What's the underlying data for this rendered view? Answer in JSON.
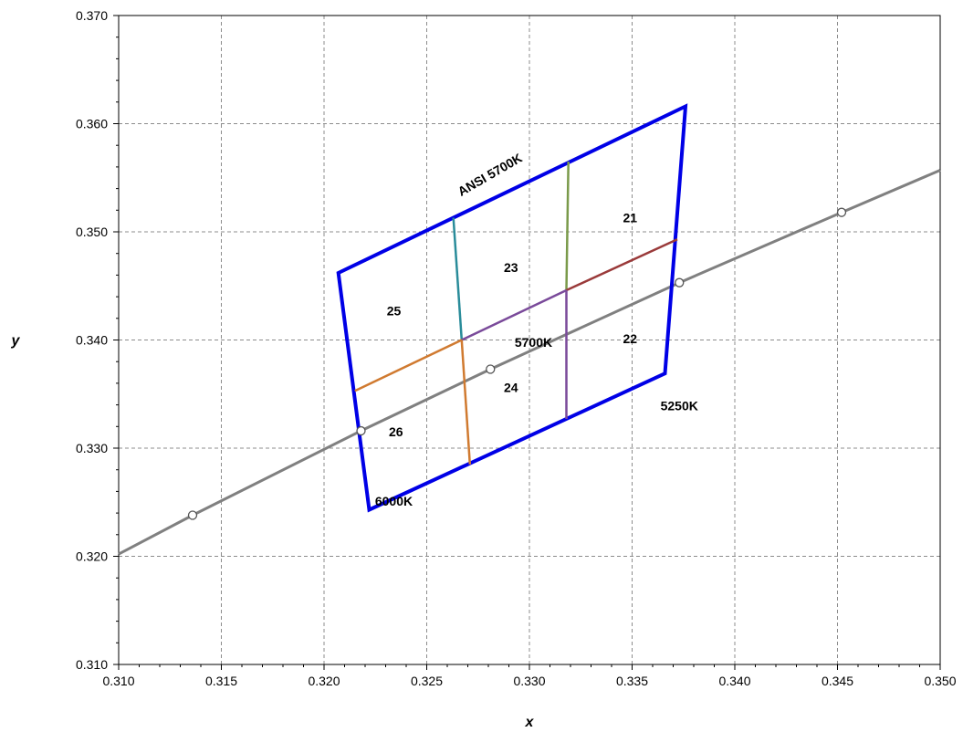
{
  "chart_data": {
    "type": "scatter",
    "title": "",
    "xlabel": "x",
    "ylabel": "y",
    "xlim": [
      0.31,
      0.35
    ],
    "ylim": [
      0.31,
      0.37
    ],
    "x_ticks": [
      "0.310",
      "0.315",
      "0.320",
      "0.325",
      "0.330",
      "0.335",
      "0.340",
      "0.345",
      "0.350"
    ],
    "y_ticks": [
      "0.310",
      "0.320",
      "0.330",
      "0.340",
      "0.350",
      "0.360",
      "0.370"
    ],
    "grid": true,
    "colors": {
      "quadrangle": "#0000e6",
      "locus": "#808080",
      "bin_21": "#7a9a4a",
      "bin_23": "#2a8c9a",
      "bin_upper_mid": "#9a3a3a",
      "bin_center_mid": "#7a4a9a",
      "bin_lower_left": "#d07a30"
    },
    "series": [
      {
        "id": "planckian-locus",
        "type": "line",
        "points": [
          [
            0.31,
            0.3202
          ],
          [
            0.3136,
            0.3238
          ],
          [
            0.3218,
            0.3316
          ],
          [
            0.3281,
            0.3373
          ],
          [
            0.3373,
            0.3453
          ],
          [
            0.3452,
            0.3518
          ],
          [
            0.35,
            0.3557
          ]
        ],
        "markers": [
          [
            0.3136,
            0.3238
          ],
          [
            0.3218,
            0.3316
          ],
          [
            0.3281,
            0.3373
          ],
          [
            0.3373,
            0.3453
          ],
          [
            0.3452,
            0.3518
          ]
        ]
      },
      {
        "id": "ansi-5700k-quadrangle",
        "type": "polygon",
        "points": [
          [
            0.3207,
            0.3462
          ],
          [
            0.3376,
            0.3616
          ],
          [
            0.3366,
            0.3369
          ],
          [
            0.3222,
            0.3243
          ]
        ]
      },
      {
        "id": "subdivisions",
        "type": "segments",
        "segments": [
          {
            "color_key": "bin_21",
            "points": [
              [
                0.3319,
                0.3565
              ],
              [
                0.3318,
                0.3446
              ]
            ]
          },
          {
            "color_key": "bin_23",
            "points": [
              [
                0.3263,
                0.3513
              ],
              [
                0.3267,
                0.34
              ]
            ]
          },
          {
            "color_key": "bin_upper_mid",
            "points": [
              [
                0.3318,
                0.3446
              ],
              [
                0.3372,
                0.3493
              ]
            ]
          },
          {
            "color_key": "bin_center_mid",
            "points": [
              [
                0.3267,
                0.34
              ],
              [
                0.3318,
                0.3446
              ]
            ]
          },
          {
            "color_key": "bin_center_mid",
            "points": [
              [
                0.3318,
                0.3446
              ],
              [
                0.3318,
                0.3327
              ]
            ]
          },
          {
            "color_key": "bin_lower_left",
            "points": [
              [
                0.3215,
                0.3353
              ],
              [
                0.3267,
                0.34
              ]
            ]
          },
          {
            "color_key": "bin_lower_left",
            "points": [
              [
                0.3267,
                0.34
              ],
              [
                0.3271,
                0.3285
              ]
            ]
          }
        ]
      }
    ],
    "annotations": [
      {
        "text": "ANSI 5700K",
        "x": 0.3281,
        "y": 0.3552,
        "rotate": -30
      },
      {
        "text": "21",
        "x": 0.3349,
        "y": 0.3512
      },
      {
        "text": "23",
        "x": 0.3291,
        "y": 0.3466
      },
      {
        "text": "25",
        "x": 0.3234,
        "y": 0.3426
      },
      {
        "text": "5700K",
        "x": 0.3302,
        "y": 0.3397
      },
      {
        "text": "22",
        "x": 0.3349,
        "y": 0.34
      },
      {
        "text": "24",
        "x": 0.3291,
        "y": 0.3355
      },
      {
        "text": "5250K",
        "x": 0.3373,
        "y": 0.3338
      },
      {
        "text": "26",
        "x": 0.3235,
        "y": 0.3314
      },
      {
        "text": "6000K",
        "x": 0.3234,
        "y": 0.325
      }
    ]
  }
}
